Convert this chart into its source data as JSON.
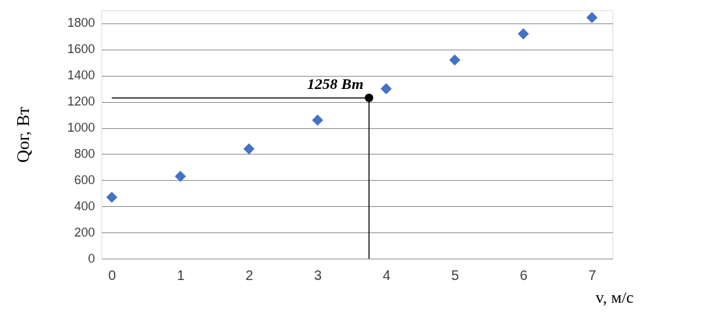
{
  "chart_data": {
    "type": "scatter",
    "xlabel": "v, м/с",
    "ylabel": "Qог, Вт",
    "xlim": [
      -0.15,
      7.3
    ],
    "xticks": [
      0,
      1,
      2,
      3,
      4,
      5,
      6,
      7
    ],
    "ylim": [
      0,
      1900
    ],
    "yticks": [
      0,
      200,
      400,
      600,
      800,
      1000,
      1200,
      1400,
      1600,
      1800
    ],
    "grid": "y",
    "marker": "diamond",
    "series": [
      {
        "color": "#4472c4",
        "x": [
          0,
          1,
          2,
          3,
          4,
          5,
          6,
          7
        ],
        "values": [
          470,
          630,
          840,
          1060,
          1300,
          1520,
          1720,
          1845
        ]
      },
      {
        "type": "line",
        "color": "#000000",
        "marker": "none",
        "x": [
          0,
          3.75,
          3.75
        ],
        "values": [
          1230,
          1230,
          0
        ]
      },
      {
        "type": "scatter",
        "color": "#000000",
        "marker": "circle",
        "x": [
          3.75
        ],
        "values": [
          1230
        ]
      }
    ],
    "annotations": [
      {
        "text": "1258 Вт",
        "x": 3.75,
        "y": 1230
      }
    ]
  }
}
